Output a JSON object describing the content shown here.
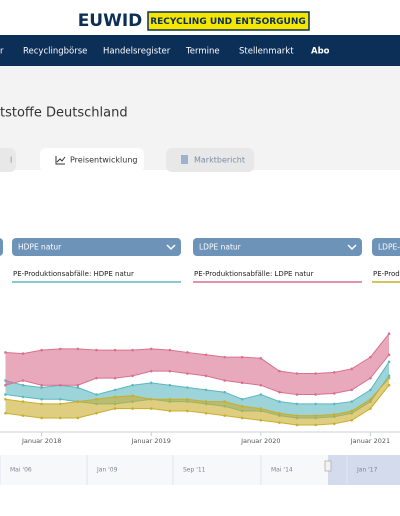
{
  "header": {
    "logo": "EUWID",
    "logo_tag": "RECYCLING UND ENTSORGUNG"
  },
  "nav": [
    "r",
    "Recyclingbörse",
    "Handelsregister",
    "Termine",
    "Stellenmarkt",
    "Abo"
  ],
  "page_title": "tstoffe Deutschland",
  "tabs": [
    "l",
    "Preisentwicklung",
    "Marktbericht"
  ],
  "dropdowns": [
    "HDPE natur",
    "LDPE natur",
    "LDPE-F"
  ],
  "chart_data": {
    "type": "range",
    "x": [
      2017.67,
      2017.83,
      2018,
      2018.17,
      2018.33,
      2018.5,
      2018.67,
      2018.83,
      2019,
      2019.17,
      2019.33,
      2019.5,
      2019.67,
      2019.83,
      2020,
      2020.17,
      2020.33,
      2020.5,
      2020.67,
      2020.83,
      2021,
      2021.17
    ],
    "xlim": [
      2017.62,
      2021.27
    ],
    "xticks": [
      {
        "value": 2018,
        "label": "Januar 2018"
      },
      {
        "value": 2019,
        "label": "Januar 2019"
      },
      {
        "value": 2020,
        "label": "Januar 2020"
      },
      {
        "value": 2021,
        "label": "Januar 2021"
      }
    ],
    "ylim": [
      100,
      600
    ],
    "series": [
      {
        "name": "PE-Produktionsabfälle: HDPE natur",
        "color": "#5cb8bf",
        "high": [
          320,
          300,
          290,
          300,
          290,
          260,
          280,
          300,
          310,
          300,
          290,
          280,
          270,
          240,
          260,
          230,
          220,
          220,
          220,
          230,
          280,
          400
        ],
        "low": [
          260,
          250,
          240,
          240,
          230,
          220,
          220,
          230,
          240,
          230,
          230,
          220,
          210,
          190,
          190,
          170,
          160,
          160,
          165,
          180,
          230,
          340
        ]
      },
      {
        "name": "PE-Produktionsabfälle: LDPE natur",
        "color": "#d9708f",
        "high": [
          440,
          435,
          450,
          455,
          455,
          450,
          450,
          450,
          455,
          450,
          440,
          430,
          420,
          420,
          415,
          360,
          350,
          350,
          355,
          370,
          420,
          520
        ],
        "low": [
          300,
          320,
          300,
          300,
          300,
          330,
          330,
          340,
          360,
          360,
          350,
          340,
          320,
          310,
          300,
          270,
          260,
          260,
          265,
          280,
          330,
          430
        ]
      },
      {
        "name": "PE-Produktionsabfälle:",
        "color": "#c9ae2c",
        "high": [
          240,
          230,
          220,
          220,
          230,
          240,
          250,
          255,
          240,
          240,
          240,
          230,
          230,
          210,
          200,
          180,
          170,
          170,
          175,
          190,
          240,
          330
        ],
        "low": [
          180,
          170,
          160,
          160,
          160,
          180,
          200,
          200,
          200,
          190,
          190,
          180,
          170,
          160,
          150,
          140,
          130,
          130,
          135,
          150,
          200,
          300
        ]
      }
    ],
    "navigator": [
      "Mai '06",
      "Jan '09",
      "Sep '11",
      "Mai '14",
      "Jan '17"
    ]
  }
}
